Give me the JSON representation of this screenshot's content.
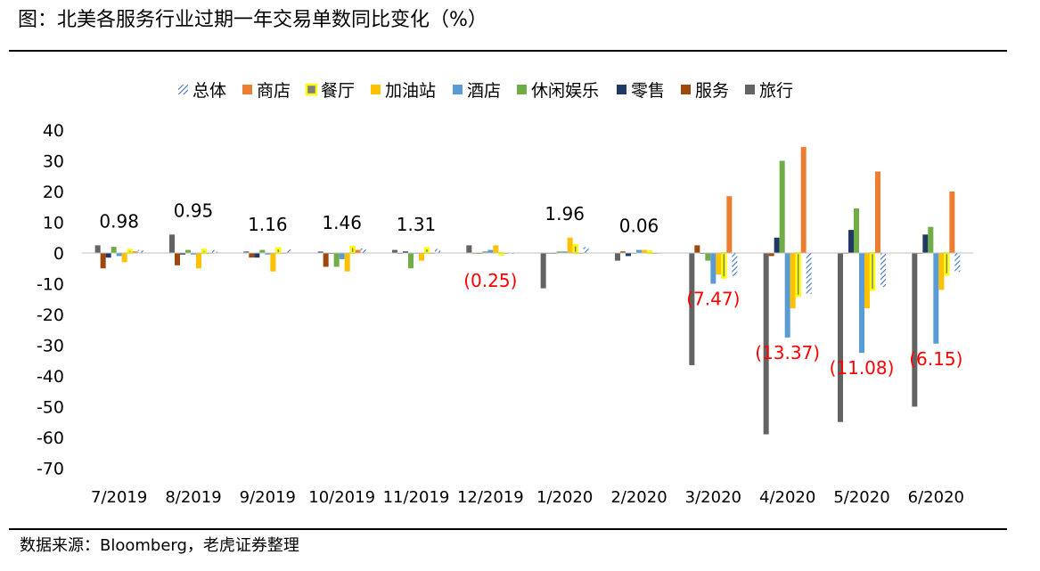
{
  "header": {
    "title": "图：北美各服务行业过期一年交易单数同比变化（%）"
  },
  "footer": {
    "source": "数据来源：Bloomberg，老虎证券整理"
  },
  "colors": {
    "overall": "#4472c4",
    "store": "#ed7d31",
    "restaurant": "#ffff00",
    "gas": "#ffc000",
    "hotel": "#5b9bd5",
    "leisure": "#70ad47",
    "retail": "#1f3864",
    "services": "#9e480e",
    "travel": "#636363",
    "label_positive": "#000000",
    "label_negative": "#ff0000"
  },
  "chart_data": {
    "type": "bar",
    "title": "",
    "xlabel": "",
    "ylabel": "",
    "ylim": [
      -70,
      40
    ],
    "yticks": [
      "40",
      "30",
      "20",
      "10",
      "0",
      "-10",
      "-20",
      "-30",
      "-40",
      "-50",
      "-60",
      "-70"
    ],
    "grid": false,
    "legend_position": "top",
    "categories": [
      "7/2019",
      "8/2019",
      "9/2019",
      "10/2019",
      "11/2019",
      "12/2019",
      "1/2020",
      "2/2020",
      "3/2020",
      "4/2020",
      "5/2020",
      "6/2020"
    ],
    "series": [
      {
        "name": "旅行",
        "key": "travel",
        "style": "solid",
        "values": [
          2.5,
          6,
          0.5,
          0.5,
          1,
          2.5,
          -11.5,
          -2.5,
          -36.5,
          -59,
          -55,
          -50
        ]
      },
      {
        "name": "服务",
        "key": "services",
        "style": "solid",
        "values": [
          -5,
          -4,
          -1.5,
          -4.5,
          0,
          0,
          0,
          0.5,
          2.5,
          -1,
          0,
          0
        ]
      },
      {
        "name": "零售",
        "key": "retail",
        "style": "solid",
        "values": [
          -1.5,
          -0.5,
          -1.5,
          0,
          0.5,
          0,
          0,
          -1,
          0,
          5,
          7.5,
          6
        ]
      },
      {
        "name": "休闲娱乐",
        "key": "leisure",
        "style": "solid",
        "values": [
          2,
          1,
          1,
          -4.5,
          -5,
          0.5,
          0.5,
          0,
          -2.5,
          30,
          14.5,
          8.5
        ]
      },
      {
        "name": "酒店",
        "key": "hotel",
        "style": "solid",
        "values": [
          -1,
          -0.5,
          -0.5,
          -2,
          0,
          1,
          0.5,
          1,
          -10,
          -27.5,
          -32.5,
          -29.5
        ]
      },
      {
        "name": "加油站",
        "key": "gas",
        "style": "solid",
        "values": [
          -3,
          -5,
          -6,
          -6,
          -2.5,
          2.5,
          5,
          1,
          -7,
          -18,
          -18,
          -12
        ]
      },
      {
        "name": "餐厅",
        "key": "restaurant",
        "style": "outlined",
        "values": [
          1,
          1,
          1.5,
          2,
          1.5,
          -0.5,
          2.5,
          0.5,
          -8,
          -14,
          -12,
          -7
        ]
      },
      {
        "name": "商店",
        "key": "store",
        "style": "solid",
        "values": [
          0.5,
          0,
          0,
          1,
          0,
          0,
          0,
          0,
          18.5,
          34.5,
          26.5,
          20
        ]
      },
      {
        "name": "总体",
        "key": "overall",
        "style": "hatched",
        "values": [
          0.98,
          0.95,
          1.16,
          1.46,
          1.31,
          -0.25,
          1.96,
          0.06,
          -7.47,
          -13.37,
          -11.08,
          -6.15
        ]
      }
    ],
    "legend_order": [
      "总体",
      "商店",
      "餐厅",
      "加油站",
      "酒店",
      "休闲娱乐",
      "零售",
      "服务",
      "旅行"
    ],
    "data_labels": [
      "0.98",
      "0.95",
      "1.16",
      "1.46",
      "1.31",
      "(0.25)",
      "1.96",
      "0.06",
      "(7.47)",
      "(13.37)",
      "(11.08)",
      "(6.15)"
    ]
  }
}
